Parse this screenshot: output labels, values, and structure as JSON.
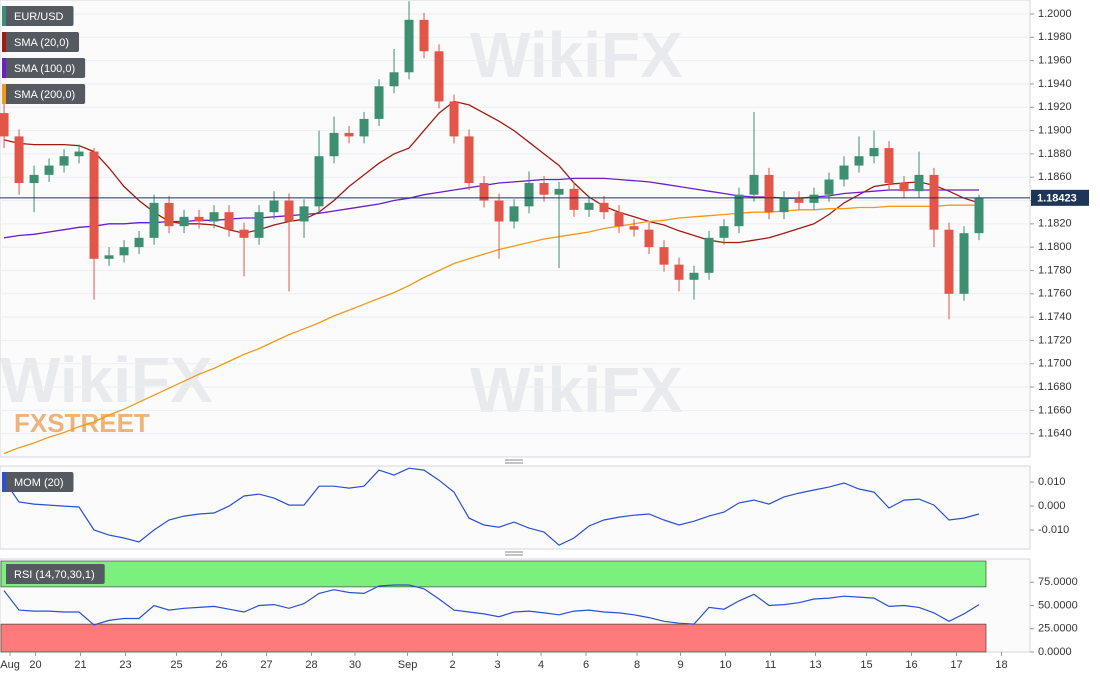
{
  "chart_data": [
    {
      "type": "candlestick",
      "symbol": "EUR/USD",
      "up_color": "#3d8f72",
      "down_color": "#e25549",
      "open": [
        1.1915,
        1.1895,
        1.1855,
        1.1862,
        1.187,
        1.1878,
        1.1882,
        1.179,
        1.1793,
        1.18,
        1.1808,
        1.1838,
        1.1818,
        1.1826,
        1.1822,
        1.183,
        1.1815,
        1.1808,
        1.183,
        1.184,
        1.1822,
        1.1835,
        1.1878,
        1.1898,
        1.1895,
        1.191,
        1.1938,
        1.195,
        1.1995,
        1.1968,
        1.1925,
        1.1895,
        1.1855,
        1.184,
        1.1822,
        1.1835,
        1.1855,
        1.1845,
        1.185,
        1.1832,
        1.1838,
        1.183,
        1.1818,
        1.1815,
        1.18,
        1.1785,
        1.1772,
        1.1778,
        1.1808,
        1.1818,
        1.1845,
        1.1862,
        1.183,
        1.1842,
        1.1838,
        1.1845,
        1.1858,
        1.187,
        1.1878,
        1.1885,
        1.1855,
        1.1848,
        1.1862,
        1.1815,
        1.176,
        1.1812
      ],
      "high": [
        1.193,
        1.1901,
        1.187,
        1.1876,
        1.1884,
        1.1888,
        1.1885,
        1.18,
        1.1806,
        1.1814,
        1.1845,
        1.1844,
        1.1832,
        1.1832,
        1.1836,
        1.1836,
        1.1821,
        1.1836,
        1.1848,
        1.1846,
        1.1841,
        1.19,
        1.1912,
        1.1904,
        1.1916,
        1.1944,
        1.197,
        1.2011,
        1.2001,
        1.1974,
        1.1931,
        1.1901,
        1.1861,
        1.1846,
        1.1841,
        1.1865,
        1.1861,
        1.1856,
        1.1856,
        1.1844,
        1.1844,
        1.1836,
        1.1824,
        1.1821,
        1.1806,
        1.1791,
        1.1784,
        1.1814,
        1.1824,
        1.1851,
        1.1916,
        1.1868,
        1.1848,
        1.1848,
        1.1851,
        1.1864,
        1.1878,
        1.1895,
        1.19,
        1.1891,
        1.1861,
        1.1882,
        1.1868,
        1.1821,
        1.1818,
        1.1845
      ],
      "low": [
        1.1885,
        1.1845,
        1.183,
        1.1856,
        1.1864,
        1.1872,
        1.1755,
        1.1784,
        1.1787,
        1.1794,
        1.1802,
        1.1812,
        1.1812,
        1.1816,
        1.1816,
        1.1809,
        1.1775,
        1.1802,
        1.1824,
        1.1762,
        1.1808,
        1.1829,
        1.1872,
        1.1889,
        1.1889,
        1.1904,
        1.1932,
        1.1944,
        1.1962,
        1.1919,
        1.1889,
        1.1849,
        1.1834,
        1.179,
        1.1816,
        1.1829,
        1.1839,
        1.1782,
        1.1826,
        1.1826,
        1.1824,
        1.1812,
        1.1809,
        1.1794,
        1.1779,
        1.1762,
        1.1755,
        1.1772,
        1.1802,
        1.1812,
        1.1839,
        1.1824,
        1.1824,
        1.1832,
        1.1832,
        1.1839,
        1.1852,
        1.1864,
        1.1872,
        1.1849,
        1.1842,
        1.1842,
        1.18,
        1.1738,
        1.1754,
        1.1806
      ],
      "close": [
        1.1895,
        1.1855,
        1.1862,
        1.187,
        1.1878,
        1.1882,
        1.179,
        1.1793,
        1.18,
        1.1808,
        1.1838,
        1.1818,
        1.1826,
        1.1822,
        1.183,
        1.1815,
        1.1808,
        1.183,
        1.184,
        1.1822,
        1.1835,
        1.1878,
        1.1898,
        1.1895,
        1.191,
        1.1938,
        1.195,
        1.1995,
        1.1968,
        1.1925,
        1.1895,
        1.1855,
        1.184,
        1.1822,
        1.1835,
        1.1855,
        1.1845,
        1.185,
        1.1832,
        1.1838,
        1.183,
        1.1818,
        1.1815,
        1.18,
        1.1785,
        1.1772,
        1.1778,
        1.1808,
        1.1818,
        1.1845,
        1.1862,
        1.183,
        1.1842,
        1.1838,
        1.1845,
        1.1858,
        1.187,
        1.1878,
        1.1885,
        1.1855,
        1.1848,
        1.1862,
        1.1815,
        1.176,
        1.1812,
        1.1842
      ],
      "series": [
        {
          "name": "SMA (20,0)",
          "color": "#a31a12",
          "values": [
            1.1892,
            1.1889,
            1.1888,
            1.1888,
            1.1888,
            1.1887,
            1.1882,
            1.1868,
            1.1852,
            1.184,
            1.183,
            1.1822,
            1.182,
            1.182,
            1.1819,
            1.1815,
            1.1812,
            1.1815,
            1.1819,
            1.1822,
            1.1824,
            1.183,
            1.184,
            1.1852,
            1.1862,
            1.1872,
            1.188,
            1.1885,
            1.19,
            1.1915,
            1.1925,
            1.1922,
            1.1915,
            1.1908,
            1.19,
            1.189,
            1.188,
            1.187,
            1.1855,
            1.1843,
            1.1835,
            1.183,
            1.1826,
            1.1822,
            1.1819,
            1.1814,
            1.181,
            1.1806,
            1.1804,
            1.1804,
            1.1806,
            1.1808,
            1.1812,
            1.1816,
            1.182,
            1.1828,
            1.1838,
            1.1845,
            1.1852,
            1.1854,
            1.1855,
            1.1856,
            1.1853,
            1.1848,
            1.1842,
            1.1838
          ]
        },
        {
          "name": "SMA (100,0)",
          "color": "#6a1fc9",
          "values": [
            1.1808,
            1.181,
            1.1811,
            1.1813,
            1.1815,
            1.1817,
            1.1818,
            1.182,
            1.182,
            1.1821,
            1.1821,
            1.1822,
            1.1822,
            1.1823,
            1.1823,
            1.1824,
            1.1825,
            1.1825,
            1.1826,
            1.1827,
            1.1828,
            1.1829,
            1.1831,
            1.1833,
            1.1835,
            1.1837,
            1.184,
            1.1842,
            1.1845,
            1.1847,
            1.1849,
            1.1851,
            1.1853,
            1.1855,
            1.1856,
            1.1857,
            1.1858,
            1.1858,
            1.1859,
            1.1859,
            1.1859,
            1.1858,
            1.1857,
            1.1856,
            1.1854,
            1.1852,
            1.185,
            1.1848,
            1.1846,
            1.1844,
            1.1843,
            1.1843,
            1.1842,
            1.1842,
            1.1843,
            1.1844,
            1.1846,
            1.1847,
            1.1848,
            1.1849,
            1.1849,
            1.1849,
            1.1849,
            1.1849,
            1.1849,
            1.1849
          ]
        },
        {
          "name": "SMA (200,0)",
          "color": "#f29a1a",
          "values": [
            1.1623,
            1.1628,
            1.1632,
            1.1637,
            1.1641,
            1.1646,
            1.165,
            1.1656,
            1.1661,
            1.1667,
            1.1673,
            1.1679,
            1.1685,
            1.1691,
            1.1696,
            1.1702,
            1.1708,
            1.1713,
            1.1719,
            1.1725,
            1.173,
            1.1735,
            1.1741,
            1.1746,
            1.1751,
            1.1756,
            1.1761,
            1.1767,
            1.1774,
            1.178,
            1.1786,
            1.179,
            1.1794,
            1.1798,
            1.1801,
            1.1804,
            1.1807,
            1.1809,
            1.1811,
            1.1813,
            1.1816,
            1.1818,
            1.182,
            1.1822,
            1.1823,
            1.1825,
            1.1826,
            1.1827,
            1.1828,
            1.1829,
            1.183,
            1.183,
            1.1831,
            1.1832,
            1.1832,
            1.1833,
            1.1833,
            1.1834,
            1.1834,
            1.1835,
            1.1835,
            1.1835,
            1.1835,
            1.1836,
            1.1836,
            1.1836
          ]
        }
      ],
      "last_price": 1.18423,
      "last_price_color": "#1d3557",
      "ylim": [
        1.162,
        1.2012
      ],
      "yticks": [
        {
          "value": 1.164,
          "label": "1.1640"
        },
        {
          "value": 1.166,
          "label": "1.1660"
        },
        {
          "value": 1.168,
          "label": "1.1680"
        },
        {
          "value": 1.17,
          "label": "1.1700"
        },
        {
          "value": 1.172,
          "label": "1.1720"
        },
        {
          "value": 1.174,
          "label": "1.1740"
        },
        {
          "value": 1.176,
          "label": "1.1760"
        },
        {
          "value": 1.178,
          "label": "1.1780"
        },
        {
          "value": 1.18,
          "label": "1.1800"
        },
        {
          "value": 1.182,
          "label": "1.1820"
        },
        {
          "value": 1.184,
          "label": "1.1840"
        },
        {
          "value": 1.186,
          "label": "1.1860"
        },
        {
          "value": 1.188,
          "label": "1.1880"
        },
        {
          "value": 1.19,
          "label": "1.1900"
        },
        {
          "value": 1.192,
          "label": "1.1920"
        },
        {
          "value": 1.194,
          "label": "1.1940"
        },
        {
          "value": 1.196,
          "label": "1.1960"
        },
        {
          "value": 1.198,
          "label": "1.1980"
        },
        {
          "value": 1.2,
          "label": "1.2000"
        }
      ],
      "xlim": [
        -0.27,
        68.4
      ],
      "xticks": [
        {
          "value": 0.4,
          "label": "Aug"
        },
        {
          "value": 2.1,
          "label": "20"
        },
        {
          "value": 5.1,
          "label": "21"
        },
        {
          "value": 8.1,
          "label": "23"
        },
        {
          "value": 11.5,
          "label": "25"
        },
        {
          "value": 14.5,
          "label": "26"
        },
        {
          "value": 17.5,
          "label": "27"
        },
        {
          "value": 20.5,
          "label": "28"
        },
        {
          "value": 23.4,
          "label": "30"
        },
        {
          "value": 26.9,
          "label": "Sep"
        },
        {
          "value": 29.9,
          "label": "2"
        },
        {
          "value": 32.9,
          "label": "3"
        },
        {
          "value": 35.8,
          "label": "4"
        },
        {
          "value": 38.8,
          "label": "6"
        },
        {
          "value": 42.2,
          "label": "8"
        },
        {
          "value": 45.1,
          "label": "9"
        },
        {
          "value": 48.1,
          "label": "10"
        },
        {
          "value": 51.1,
          "label": "11"
        },
        {
          "value": 54.1,
          "label": "13"
        },
        {
          "value": 57.5,
          "label": "15"
        },
        {
          "value": 60.5,
          "label": "16"
        },
        {
          "value": 63.5,
          "label": "17"
        },
        {
          "value": 66.5,
          "label": "18"
        }
      ],
      "grid": true,
      "logo": "FXSTREET",
      "watermark": "WikiFX"
    },
    {
      "type": "line",
      "name": "MOM (20)",
      "color": "#2a4fd0",
      "values": [
        0.0108,
        0.0017,
        0.0008,
        0.0004,
        0.0,
        -0.0004,
        -0.01,
        -0.0121,
        -0.0133,
        -0.015,
        -0.01,
        -0.0058,
        -0.0042,
        -0.0033,
        -0.0029,
        0.0,
        0.0042,
        0.005,
        0.0033,
        0.0004,
        0.0004,
        0.0083,
        0.0083,
        0.0075,
        0.0083,
        0.015,
        0.0129,
        0.0158,
        0.015,
        0.0108,
        0.0058,
        -0.005,
        -0.0079,
        -0.0088,
        -0.0067,
        -0.0092,
        -0.0108,
        -0.0163,
        -0.0133,
        -0.0083,
        -0.0058,
        -0.0046,
        -0.0038,
        -0.0033,
        -0.0058,
        -0.0079,
        -0.0063,
        -0.0042,
        -0.0025,
        0.0013,
        0.0025,
        0.0008,
        0.0038,
        0.0054,
        0.0067,
        0.0079,
        0.0096,
        0.0071,
        0.0058,
        -0.0008,
        0.0025,
        0.0029,
        0.0004,
        -0.0058,
        -0.005,
        -0.0033
      ],
      "ylim": [
        -0.0179,
        0.0167
      ],
      "yticks": [
        {
          "value": -0.01,
          "label": "-0.010"
        },
        {
          "value": 0,
          "label": "0.000"
        },
        {
          "value": 0.01,
          "label": "0.010"
        }
      ]
    },
    {
      "type": "line",
      "name": "RSI (14,70,30,1)",
      "color": "#2a4fd0",
      "values": [
        66,
        45,
        44,
        44,
        43,
        43,
        29,
        34,
        36,
        36,
        50,
        45,
        47,
        48,
        49,
        46,
        43,
        50,
        51,
        47,
        52,
        63,
        67,
        64,
        63,
        71,
        72,
        72,
        68,
        57,
        45,
        43,
        41,
        38,
        43,
        44,
        42,
        40,
        44,
        45,
        43,
        42,
        40,
        37,
        33,
        31,
        30,
        48,
        46,
        55,
        62,
        50,
        51,
        53,
        57,
        58,
        60,
        59,
        58,
        49,
        50,
        48,
        42,
        33,
        41,
        51
      ],
      "upper_band": 70,
      "lower_band": 30,
      "upper_color": "#7cf07c",
      "lower_color": "#ff7b7b",
      "ylim": [
        0,
        100
      ],
      "yticks": [
        {
          "value": 0,
          "label": "0.0000"
        },
        {
          "value": 25,
          "label": "25.0000"
        },
        {
          "value": 50,
          "label": "50.0000"
        },
        {
          "value": 75,
          "label": "75.0000"
        }
      ]
    }
  ]
}
